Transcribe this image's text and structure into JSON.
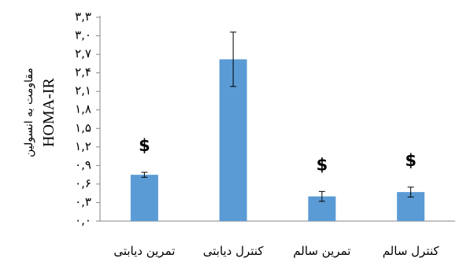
{
  "chart_data": {
    "type": "bar",
    "ylabel_lines": [
      "مقاومت به انسولین",
      "HOMA-IR"
    ],
    "ylim": [
      0,
      3.3
    ],
    "yticks": [
      0,
      0.3,
      0.6,
      0.9,
      1.2,
      1.5,
      1.8,
      2.1,
      2.4,
      2.7,
      3.0,
      3.3
    ],
    "ytick_labels": [
      "۰,۰",
      "۰,۳",
      "۰,۶",
      "۰,۹",
      "۱,۲",
      "۱,۵",
      "۱,۸",
      "۲,۱",
      "۲,۴",
      "۲,۷",
      "۳,۰",
      "۳,۳"
    ],
    "categories": [
      "کنترل سالم",
      "تمرین سالم",
      "کنترل دیابتی",
      "تمرین دیابتی"
    ],
    "values": [
      0.47,
      0.4,
      2.62,
      0.75
    ],
    "errors": [
      0.08,
      0.08,
      0.44,
      0.04
    ],
    "annotations": [
      "$",
      "$",
      "",
      "$"
    ],
    "bar_color": "#5B9BD5",
    "grid": false
  }
}
